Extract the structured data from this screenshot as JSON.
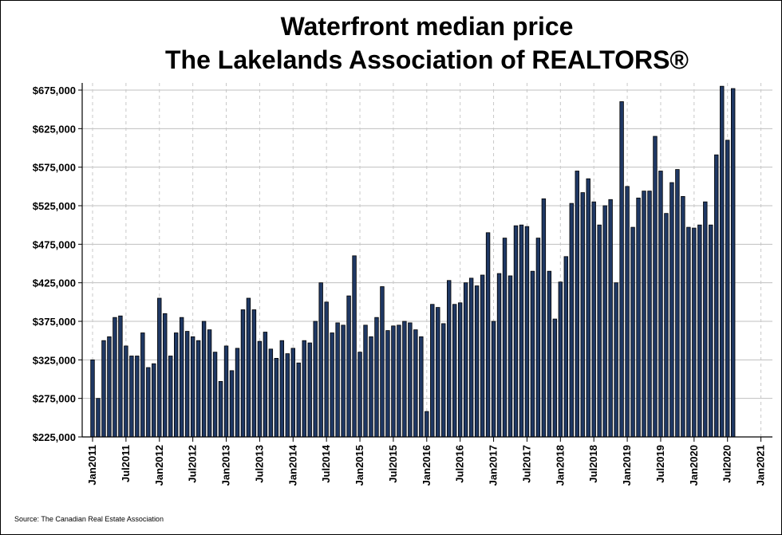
{
  "title_line1": "Waterfront median price",
  "title_line2": "The Lakelands Association of REALTORS®",
  "source": "Source: The Canadian Real Estate Association",
  "colors": {
    "bar_fill": "#1f3864",
    "bar_stroke": "#000000",
    "grid_h": "#bfbfbf",
    "grid_v": "#c8c8c8"
  },
  "chart_data": {
    "type": "bar",
    "title": "Waterfront median price\nThe Lakelands Association of REALTORS®",
    "xlabel": "",
    "ylabel": "",
    "ylim": [
      225000,
      675000
    ],
    "yticks": [
      "$225,000",
      "$275,000",
      "$325,000",
      "$375,000",
      "$425,000",
      "$475,000",
      "$525,000",
      "$575,000",
      "$625,000",
      "$675,000"
    ],
    "ytick_values": [
      225000,
      275000,
      325000,
      375000,
      425000,
      475000,
      525000,
      575000,
      625000,
      675000
    ],
    "xticks": [
      "Jan2011",
      "Jul2011",
      "Jan2012",
      "Jul2012",
      "Jan2013",
      "Jul2013",
      "Jan2014",
      "Jul2014",
      "Jan2015",
      "Jul2015",
      "Jan2016",
      "Jul2016",
      "Jan2017",
      "Jul2017",
      "Jan2018",
      "Jul2018",
      "Jan2019",
      "Jul2019",
      "Jan2020",
      "Jul2020",
      "Jan2021"
    ],
    "start": "2011-01",
    "grid": "horizontal solid, vertical dashed",
    "values": [
      325000,
      275000,
      350000,
      355000,
      380000,
      382000,
      343000,
      330000,
      330000,
      360000,
      315000,
      320000,
      405000,
      385000,
      330000,
      360000,
      380000,
      362000,
      355000,
      350000,
      375000,
      364000,
      335000,
      297000,
      343000,
      311000,
      340000,
      390000,
      405000,
      390000,
      349000,
      361000,
      339000,
      327000,
      350000,
      333000,
      340000,
      321000,
      350000,
      347000,
      375000,
      425000,
      400000,
      360000,
      373000,
      370000,
      408000,
      460000,
      335000,
      370000,
      355000,
      380000,
      420000,
      363000,
      369000,
      370000,
      375000,
      373000,
      364000,
      355000,
      258000,
      397000,
      393000,
      372000,
      428000,
      397000,
      399000,
      425000,
      431000,
      421000,
      435000,
      490000,
      375000,
      437000,
      483000,
      434000,
      499000,
      500000,
      498000,
      440000,
      483000,
      534000,
      440000,
      378000,
      426000,
      459000,
      528000,
      570000,
      542000,
      560000,
      530000,
      500000,
      525000,
      533000,
      425000,
      660000,
      550000,
      497000,
      535000,
      544000,
      544000,
      615000,
      570000,
      515000,
      555000,
      572000,
      537000,
      497000,
      496000,
      500000,
      530000,
      500000,
      591000,
      680000,
      610000,
      677000
    ]
  }
}
